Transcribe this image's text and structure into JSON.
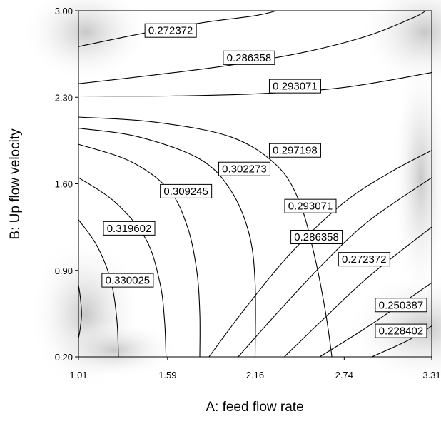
{
  "chart_data": {
    "type": "contour",
    "xlabel": "A: feed flow rate",
    "ylabel": "B: Up flow velocity",
    "xlim": [
      1.01,
      3.31
    ],
    "ylim": [
      0.2,
      3.0
    ],
    "x_ticks": [
      "1.01",
      "1.59",
      "2.16",
      "2.74",
      "3.31"
    ],
    "y_ticks": [
      "0.20",
      "0.90",
      "1.60",
      "2.30",
      "3.00"
    ],
    "grid": false,
    "background_shading": "grayscale",
    "contours": [
      {
        "level": "0.272372",
        "points": [
          [
            1.01,
            2.71
          ],
          [
            1.4,
            2.81
          ],
          [
            1.8,
            2.9
          ],
          [
            2.16,
            2.96
          ],
          [
            2.3,
            3.0
          ]
        ],
        "label": {
          "x": 1.61,
          "y": 2.84
        }
      },
      {
        "level": "0.286358",
        "points": [
          [
            1.01,
            2.41
          ],
          [
            1.5,
            2.48
          ],
          [
            2.0,
            2.56
          ],
          [
            2.5,
            2.67
          ],
          [
            2.9,
            2.8
          ],
          [
            3.2,
            2.95
          ],
          [
            3.27,
            3.0
          ]
        ],
        "label": {
          "x": 2.12,
          "y": 2.62
        }
      },
      {
        "level": "0.293071",
        "points": [
          [
            1.01,
            2.31
          ],
          [
            1.6,
            2.31
          ],
          [
            2.2,
            2.33
          ],
          [
            2.74,
            2.38
          ],
          [
            3.31,
            2.5
          ]
        ],
        "label": {
          "x": 2.42,
          "y": 2.39
        }
      },
      {
        "level": "0.297198",
        "points": [
          [
            1.01,
            2.14
          ],
          [
            1.5,
            2.1
          ],
          [
            2.0,
            1.98
          ],
          [
            2.3,
            1.75
          ],
          [
            2.45,
            1.45
          ],
          [
            2.55,
            1.0
          ],
          [
            2.62,
            0.55
          ],
          [
            2.66,
            0.2
          ]
        ],
        "label": {
          "x": 2.42,
          "y": 1.87
        }
      },
      {
        "level": "0.302273",
        "points": [
          [
            1.01,
            2.05
          ],
          [
            1.4,
            1.98
          ],
          [
            1.8,
            1.8
          ],
          [
            2.0,
            1.55
          ],
          [
            2.12,
            1.2
          ],
          [
            2.16,
            0.8
          ],
          [
            2.16,
            0.2
          ]
        ],
        "label": {
          "x": 2.09,
          "y": 1.72
        }
      },
      {
        "level": "0.309245",
        "points": [
          [
            1.01,
            1.92
          ],
          [
            1.35,
            1.78
          ],
          [
            1.6,
            1.55
          ],
          [
            1.72,
            1.25
          ],
          [
            1.78,
            0.9
          ],
          [
            1.8,
            0.55
          ],
          [
            1.8,
            0.2
          ]
        ],
        "label": {
          "x": 1.71,
          "y": 1.54
        }
      },
      {
        "level": "0.319602",
        "points": [
          [
            1.01,
            1.65
          ],
          [
            1.25,
            1.45
          ],
          [
            1.45,
            1.15
          ],
          [
            1.54,
            0.8
          ],
          [
            1.57,
            0.5
          ],
          [
            1.58,
            0.2
          ]
        ],
        "label": {
          "x": 1.34,
          "y": 1.24
        }
      },
      {
        "level": "0.330025",
        "points": [
          [
            1.01,
            1.31
          ],
          [
            1.13,
            1.1
          ],
          [
            1.22,
            0.82
          ],
          [
            1.26,
            0.5
          ],
          [
            1.27,
            0.2
          ]
        ],
        "label": {
          "x": 1.33,
          "y": 0.82
        }
      },
      {
        "level": "0.330025",
        "points": [
          [
            1.01,
            0.78
          ],
          [
            1.02,
            0.7
          ],
          [
            1.03,
            0.55
          ],
          [
            1.02,
            0.42
          ],
          [
            1.01,
            0.35
          ]
        ]
      },
      {
        "level": "0.293071",
        "points": [
          [
            1.86,
            0.2
          ],
          [
            2.1,
            0.6
          ],
          [
            2.4,
            1.05
          ],
          [
            2.74,
            1.45
          ],
          [
            3.05,
            1.7
          ],
          [
            3.31,
            1.87
          ]
        ],
        "label": {
          "x": 2.52,
          "y": 1.42
        }
      },
      {
        "level": "0.286358",
        "points": [
          [
            2.05,
            0.2
          ],
          [
            2.3,
            0.55
          ],
          [
            2.6,
            0.95
          ],
          [
            2.9,
            1.3
          ],
          [
            3.31,
            1.65
          ]
        ],
        "label": {
          "x": 2.56,
          "y": 1.17
        }
      },
      {
        "level": "0.272372",
        "points": [
          [
            2.35,
            0.2
          ],
          [
            2.6,
            0.5
          ],
          [
            2.9,
            0.85
          ],
          [
            3.31,
            1.25
          ]
        ],
        "label": {
          "x": 2.87,
          "y": 0.99
        }
      },
      {
        "level": "0.250387",
        "points": [
          [
            2.58,
            0.2
          ],
          [
            2.9,
            0.45
          ],
          [
            3.31,
            0.8
          ]
        ],
        "label": {
          "x": 3.11,
          "y": 0.62
        }
      },
      {
        "level": "0.228402",
        "points": [
          [
            2.92,
            0.2
          ],
          [
            3.15,
            0.33
          ],
          [
            3.31,
            0.45
          ]
        ],
        "label": {
          "x": 3.11,
          "y": 0.41
        }
      }
    ]
  }
}
